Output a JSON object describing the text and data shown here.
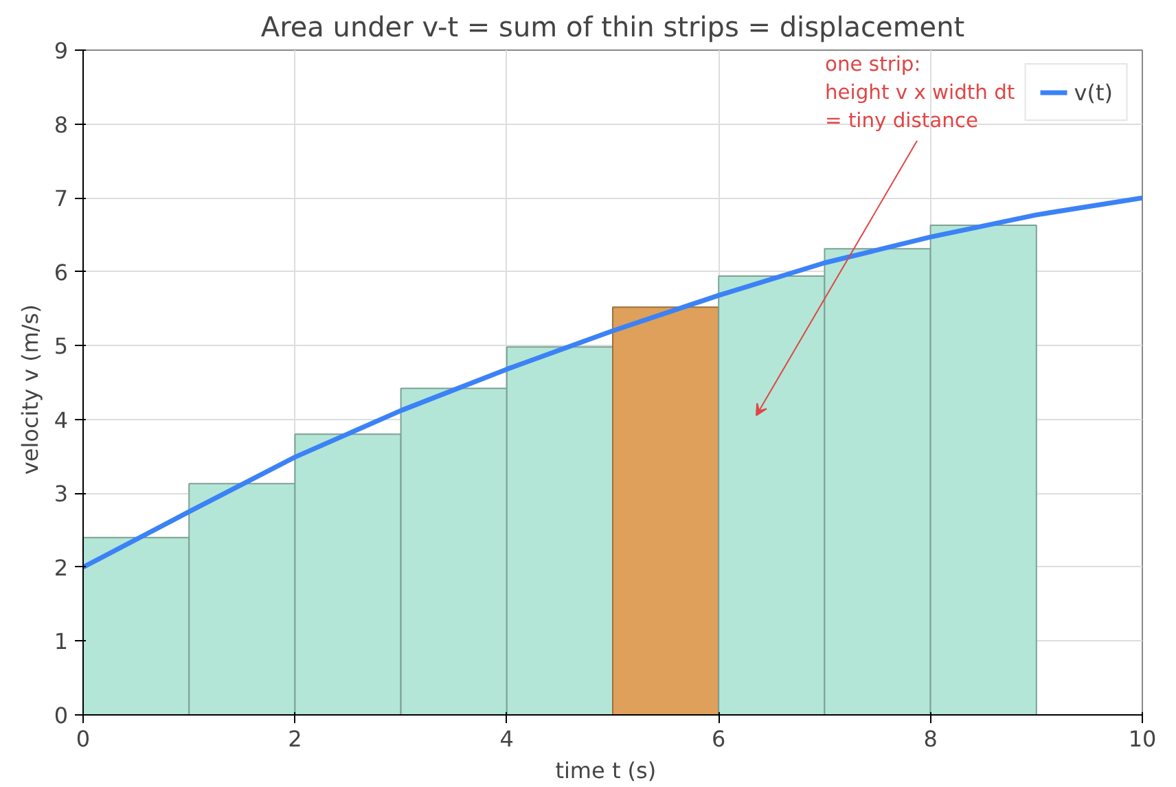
{
  "chart_data": {
    "type": "bar",
    "title": "Area under v-t = sum of thin strips = displacement",
    "xlabel": "time  t  (s)",
    "ylabel": "velocity  v  (m/s)",
    "xlim": [
      0,
      10
    ],
    "ylim": [
      0,
      9
    ],
    "xticks": [
      0,
      2,
      4,
      6,
      8,
      10
    ],
    "yticks": [
      0,
      1,
      2,
      3,
      4,
      5,
      6,
      7,
      8,
      9
    ],
    "grid": true,
    "legend": "top right",
    "series": [
      {
        "x": [
          0.5,
          1.5,
          2.5,
          3.5,
          4.5,
          5.5,
          6.5,
          7.5,
          8.5
        ],
        "values": [
          2.4,
          3.13,
          3.8,
          4.42,
          4.98,
          5.52,
          5.94,
          6.31,
          6.63
        ],
        "colors": [
          "#b3e6d6",
          "#b3e6d6",
          "#b3e6d6",
          "#b3e6d6",
          "#b3e6d6",
          "#dea05a",
          "#b3e6d6",
          "#b3e6d6",
          "#b3e6d6"
        ]
      },
      {
        "type": "line",
        "name": "v(t)",
        "color": "#3b82f6",
        "x": [
          0,
          1,
          2,
          3,
          4,
          5,
          6,
          7,
          8,
          9,
          10
        ],
        "values": [
          2.0,
          2.75,
          3.49,
          4.12,
          4.68,
          5.2,
          5.68,
          6.12,
          6.47,
          6.77,
          7.0
        ]
      }
    ],
    "annotations": [
      "one strip:\nheight v  x  width dt\n= tiny distance"
    ]
  }
}
